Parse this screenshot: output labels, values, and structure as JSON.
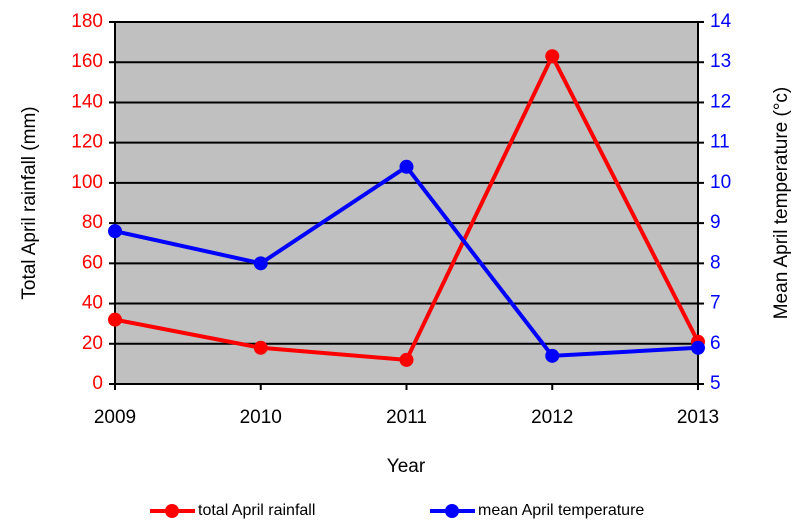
{
  "chart_data": {
    "type": "line",
    "x_label": "Year",
    "y_label": "Total April rainfall (mm)",
    "y2_label": "Mean April temperature (°c)",
    "x": [
      2009,
      2010,
      2011,
      2012,
      2013
    ],
    "xlim": [
      2009,
      2013
    ],
    "xticks": [
      2009,
      2010,
      2011,
      2012,
      2013
    ],
    "ylim": [
      0,
      180
    ],
    "yticks": [
      0,
      20,
      40,
      60,
      80,
      100,
      120,
      140,
      160,
      180
    ],
    "y2lim": [
      5,
      14
    ],
    "y2ticks": [
      5,
      6,
      7,
      8,
      9,
      10,
      11,
      12,
      13,
      14
    ],
    "grid": true,
    "legend": "bottom",
    "background": "#c0c0c0",
    "y_tick_color": "#ff0000",
    "y2_tick_color": "#0000ff",
    "series": [
      {
        "name": "total April rainfall",
        "color": "#ff0000",
        "values": [
          32,
          18,
          12,
          163,
          21
        ]
      },
      {
        "name": "mean April temperature",
        "color": "#0000ff",
        "axis": "y2",
        "values": [
          8.8,
          8.0,
          10.4,
          5.7,
          5.9
        ]
      }
    ]
  }
}
